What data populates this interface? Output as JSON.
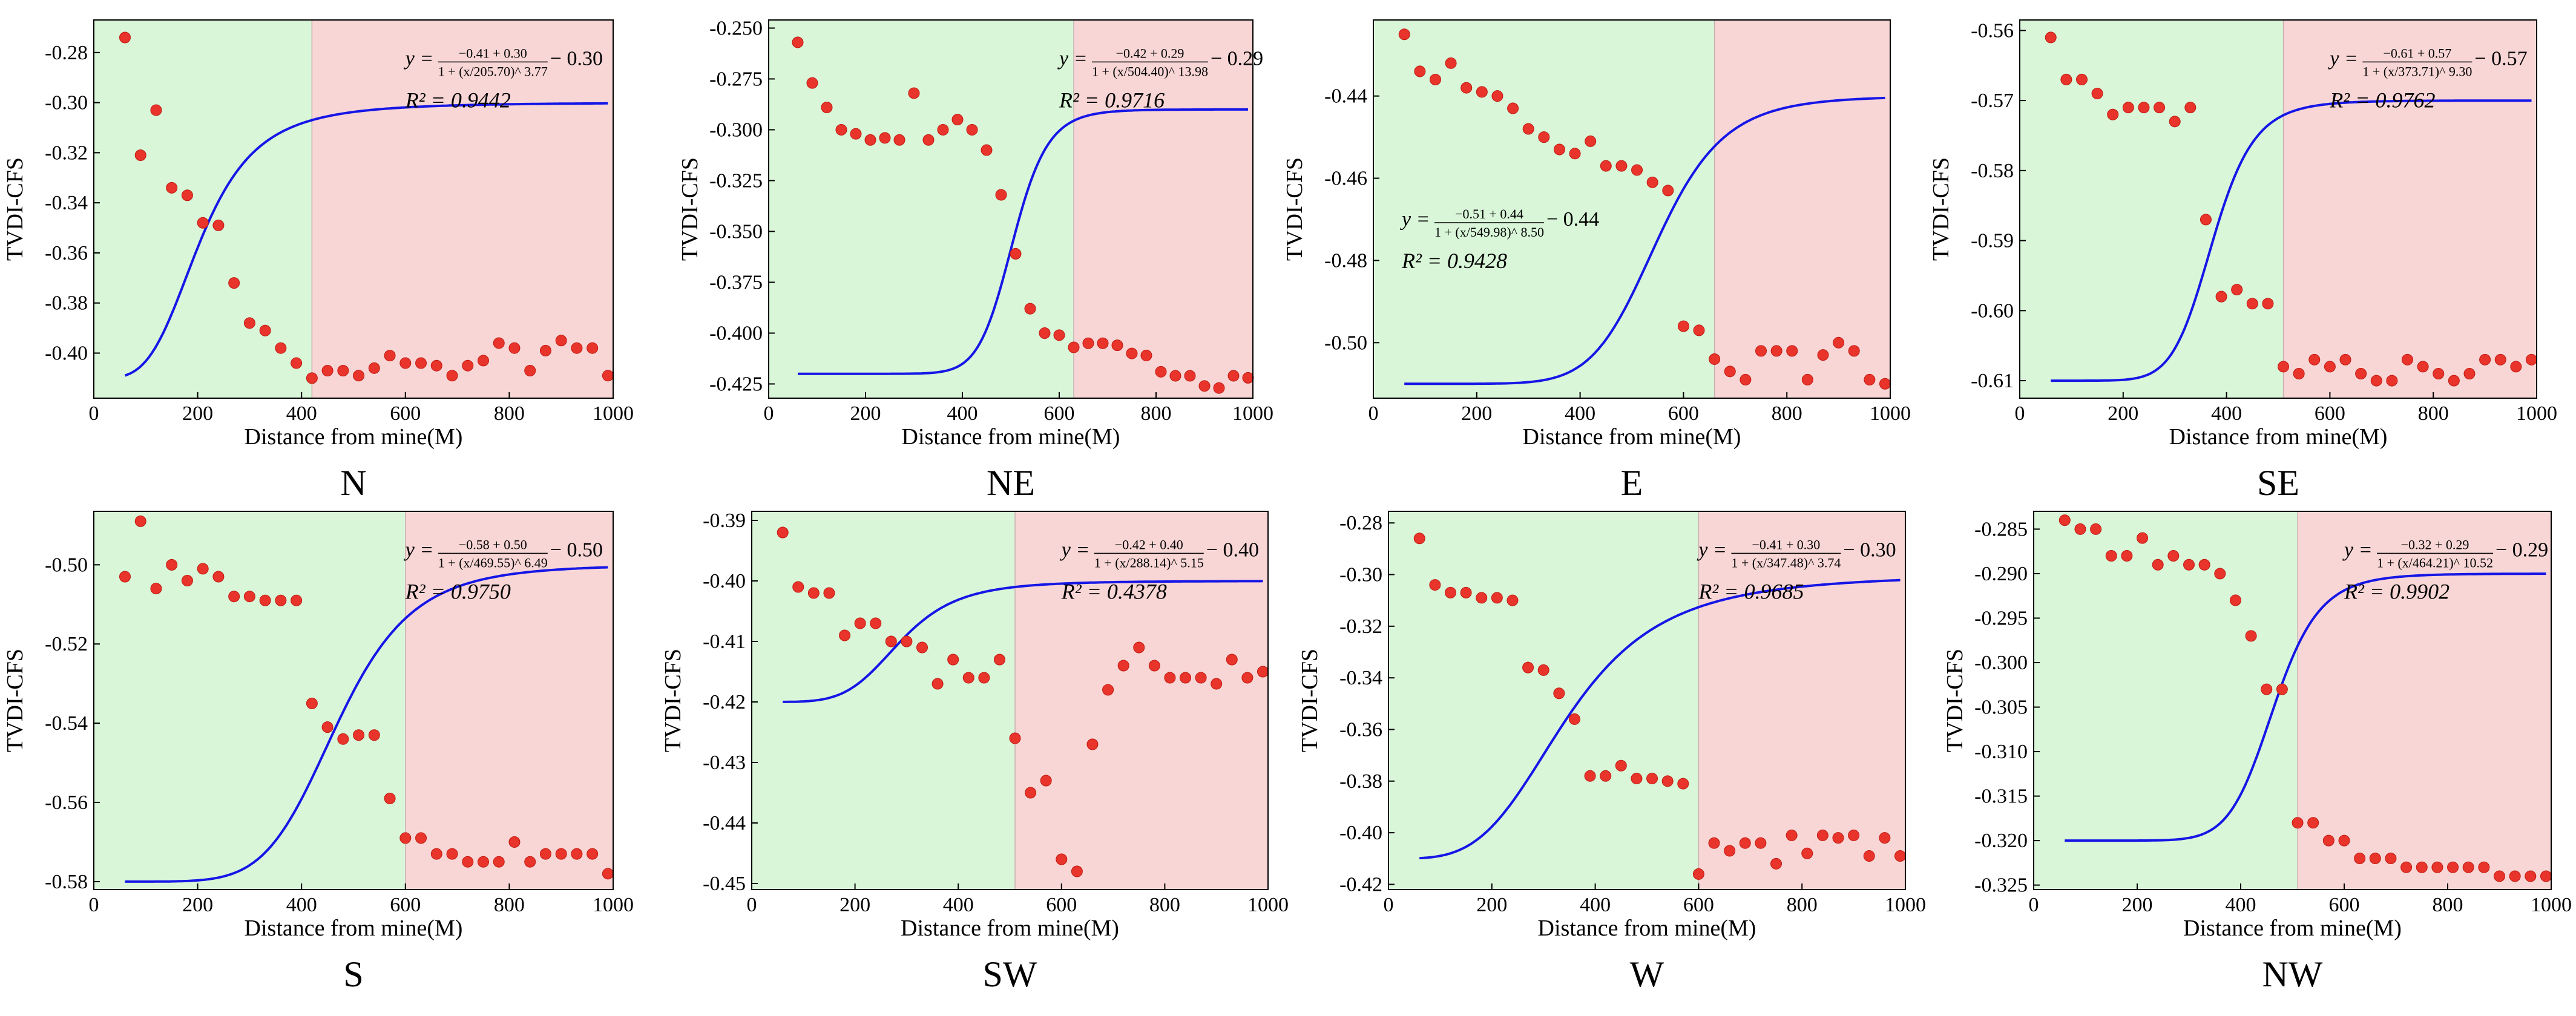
{
  "figure": {
    "colors": {
      "left_zone": "#d9f6d9",
      "right_zone": "#f8d6d6",
      "fit_line": "#1616e6",
      "points": "#e8342a",
      "point_edge": "#c01a12"
    }
  },
  "chart_data": [
    {
      "type": "scatter",
      "title": "N",
      "xlabel": "Distance from mine(M)",
      "ylabel": "TVDI-CFS",
      "xlim": [
        0,
        1000
      ],
      "ylim": [
        -0.418,
        -0.267
      ],
      "xticks": [
        "0",
        "200",
        "400",
        "600",
        "800",
        "1000"
      ],
      "yticks": [
        -0.28,
        -0.3,
        -0.32,
        -0.34,
        -0.36,
        -0.38,
        -0.4
      ],
      "ytick_labels": [
        "-0.28",
        "-0.30",
        "-0.32",
        "-0.34",
        "-0.36",
        "-0.38",
        "-0.40"
      ],
      "zone_boundary": 420,
      "fit": {
        "A1": -0.41,
        "A2": 0.3,
        "x0": 205.7,
        "p": 3.77,
        "c": -0.3
      },
      "equation": {
        "y": "y =",
        "num": "−0.41 + 0.30",
        "den": "1 + (x/205.70)^ 3.77",
        "tail": " − 0.30",
        "r2": "R² = 0.9442"
      },
      "annotation_position": "top-right",
      "points": {
        "x": [
          60,
          90,
          120,
          150,
          180,
          210,
          240,
          270,
          300,
          330,
          360,
          390,
          420,
          450,
          480,
          510,
          540,
          570,
          600,
          630,
          660,
          690,
          720,
          750,
          780,
          810,
          840,
          870,
          900,
          930,
          960,
          990
        ],
        "y": [
          -0.274,
          -0.321,
          -0.303,
          -0.334,
          -0.337,
          -0.348,
          -0.349,
          -0.372,
          -0.388,
          -0.391,
          -0.398,
          -0.404,
          -0.41,
          -0.407,
          -0.407,
          -0.409,
          -0.406,
          -0.401,
          -0.404,
          -0.404,
          -0.405,
          -0.409,
          -0.405,
          -0.403,
          -0.396,
          -0.398,
          -0.407,
          -0.399,
          -0.395,
          -0.398,
          -0.398,
          -0.409
        ]
      }
    },
    {
      "type": "scatter",
      "title": "NE",
      "xlabel": "Distance from mine(M)",
      "ylabel": "TVDI-CFS",
      "xlim": [
        0,
        1000
      ],
      "ylim": [
        -0.432,
        -0.246
      ],
      "xticks": [
        "0",
        "200",
        "400",
        "600",
        "800",
        "1000"
      ],
      "yticks": [
        -0.25,
        -0.275,
        -0.3,
        -0.325,
        -0.35,
        -0.375,
        -0.4,
        -0.425
      ],
      "ytick_labels": [
        "-0.250",
        "-0.275",
        "-0.300",
        "-0.325",
        "-0.350",
        "-0.375",
        "-0.400",
        "-0.425"
      ],
      "zone_boundary": 630,
      "fit": {
        "A1": -0.42,
        "A2": 0.29,
        "x0": 504.4,
        "p": 13.98,
        "c": -0.29
      },
      "equation": {
        "y": "y =",
        "num": "−0.42 + 0.29",
        "den": "1 + (x/504.40)^ 13.98",
        "tail": " − 0.29",
        "r2": "R² = 0.9716"
      },
      "annotation_position": "top-right",
      "points": {
        "x": [
          60,
          90,
          120,
          150,
          180,
          210,
          240,
          270,
          300,
          330,
          360,
          390,
          420,
          450,
          480,
          510,
          540,
          570,
          600,
          630,
          660,
          690,
          720,
          750,
          780,
          810,
          840,
          870,
          900,
          930,
          960,
          990
        ],
        "y": [
          -0.257,
          -0.277,
          -0.289,
          -0.3,
          -0.302,
          -0.305,
          -0.304,
          -0.305,
          -0.282,
          -0.305,
          -0.3,
          -0.295,
          -0.3,
          -0.31,
          -0.332,
          -0.361,
          -0.388,
          -0.4,
          -0.401,
          -0.407,
          -0.405,
          -0.405,
          -0.406,
          -0.41,
          -0.411,
          -0.419,
          -0.421,
          -0.421,
          -0.426,
          -0.427,
          -0.421,
          -0.422
        ]
      }
    },
    {
      "type": "scatter",
      "title": "E",
      "xlabel": "Distance from mine(M)",
      "ylabel": "TVDI-CFS",
      "xlim": [
        0,
        1000
      ],
      "ylim": [
        -0.5135,
        -0.4215
      ],
      "xticks": [
        "0",
        "200",
        "400",
        "600",
        "800",
        "1000"
      ],
      "yticks": [
        -0.44,
        -0.46,
        -0.48,
        -0.5
      ],
      "ytick_labels": [
        "-0.44",
        "-0.46",
        "-0.48",
        "-0.50"
      ],
      "zone_boundary": 660,
      "fit": {
        "A1": -0.51,
        "A2": 0.44,
        "x0": 549.98,
        "p": 8.5,
        "c": -0.44
      },
      "equation": {
        "y": "y =",
        "num": "−0.51 + 0.44",
        "den": "1 + (x/549.98)^ 8.50",
        "tail": " − 0.44",
        "r2": "R² = 0.9428"
      },
      "annotation_position": "middle-left",
      "points": {
        "x": [
          60,
          90,
          120,
          150,
          180,
          210,
          240,
          270,
          300,
          330,
          360,
          390,
          420,
          450,
          480,
          510,
          540,
          570,
          600,
          630,
          660,
          690,
          720,
          750,
          780,
          810,
          840,
          870,
          900,
          930,
          960,
          990
        ],
        "y": [
          -0.425,
          -0.434,
          -0.436,
          -0.432,
          -0.438,
          -0.439,
          -0.44,
          -0.443,
          -0.448,
          -0.45,
          -0.453,
          -0.454,
          -0.451,
          -0.457,
          -0.457,
          -0.458,
          -0.461,
          -0.463,
          -0.496,
          -0.497,
          -0.504,
          -0.507,
          -0.509,
          -0.502,
          -0.502,
          -0.502,
          -0.509,
          -0.503,
          -0.5,
          -0.502,
          -0.509,
          -0.51
        ]
      }
    },
    {
      "type": "scatter",
      "title": "SE",
      "xlabel": "Distance from mine(M)",
      "ylabel": "TVDI-CFS",
      "xlim": [
        0,
        1000
      ],
      "ylim": [
        -0.6125,
        -0.5585
      ],
      "xticks": [
        "0",
        "200",
        "400",
        "600",
        "800",
        "1000"
      ],
      "yticks": [
        -0.56,
        -0.57,
        -0.58,
        -0.59,
        -0.6,
        -0.61
      ],
      "ytick_labels": [
        "-0.56",
        "-0.57",
        "-0.58",
        "-0.59",
        "-0.60",
        "-0.61"
      ],
      "zone_boundary": 510,
      "fit": {
        "A1": -0.61,
        "A2": 0.57,
        "x0": 373.71,
        "p": 9.3,
        "c": -0.57
      },
      "equation": {
        "y": "y =",
        "num": "−0.61 + 0.57",
        "den": "1 + (x/373.71)^ 9.30",
        "tail": " − 0.57",
        "r2": "R² = 0.9762"
      },
      "annotation_position": "top-right",
      "points": {
        "x": [
          60,
          90,
          120,
          150,
          180,
          210,
          240,
          270,
          300,
          330,
          360,
          390,
          420,
          450,
          480,
          510,
          540,
          570,
          600,
          630,
          660,
          690,
          720,
          750,
          780,
          810,
          840,
          870,
          900,
          930,
          960,
          990
        ],
        "y": [
          -0.561,
          -0.567,
          -0.567,
          -0.569,
          -0.572,
          -0.571,
          -0.571,
          -0.571,
          -0.573,
          -0.571,
          -0.587,
          -0.598,
          -0.597,
          -0.599,
          -0.599,
          -0.608,
          -0.609,
          -0.607,
          -0.608,
          -0.607,
          -0.609,
          -0.61,
          -0.61,
          -0.607,
          -0.608,
          -0.609,
          -0.61,
          -0.609,
          -0.607,
          -0.607,
          -0.608,
          -0.607
        ]
      }
    },
    {
      "type": "scatter",
      "title": "S",
      "xlabel": "Distance from mine(M)",
      "ylabel": "TVDI-CFS",
      "xlim": [
        0,
        1000
      ],
      "ylim": [
        -0.582,
        -0.4865
      ],
      "xticks": [
        "0",
        "200",
        "400",
        "600",
        "800",
        "1000"
      ],
      "yticks": [
        -0.5,
        -0.52,
        -0.54,
        -0.56,
        -0.58
      ],
      "ytick_labels": [
        "-0.50",
        "-0.52",
        "-0.54",
        "-0.56",
        "-0.58"
      ],
      "zone_boundary": 600,
      "fit": {
        "A1": -0.58,
        "A2": 0.5,
        "x0": 469.55,
        "p": 6.49,
        "c": -0.5
      },
      "equation": {
        "y": "y =",
        "num": "−0.58 + 0.50",
        "den": "1 + (x/469.55)^ 6.49",
        "tail": " − 0.50",
        "r2": "R² = 0.9750"
      },
      "annotation_position": "top-right",
      "points": {
        "x": [
          60,
          90,
          120,
          150,
          180,
          210,
          240,
          270,
          300,
          330,
          360,
          390,
          420,
          450,
          480,
          510,
          540,
          570,
          600,
          630,
          660,
          690,
          720,
          750,
          780,
          810,
          840,
          870,
          900,
          930,
          960,
          990
        ],
        "y": [
          -0.503,
          -0.489,
          -0.506,
          -0.5,
          -0.504,
          -0.501,
          -0.503,
          -0.508,
          -0.508,
          -0.509,
          -0.509,
          -0.509,
          -0.535,
          -0.541,
          -0.544,
          -0.543,
          -0.543,
          -0.559,
          -0.569,
          -0.569,
          -0.573,
          -0.573,
          -0.575,
          -0.575,
          -0.575,
          -0.57,
          -0.575,
          -0.573,
          -0.573,
          -0.573,
          -0.573,
          -0.578
        ]
      }
    },
    {
      "type": "scatter",
      "title": "SW",
      "xlabel": "Distance from mine(M)",
      "ylabel": "TVDI-CFS",
      "xlim": [
        0,
        1000
      ],
      "ylim": [
        -0.451,
        -0.3885
      ],
      "xticks": [
        "0",
        "200",
        "400",
        "600",
        "800",
        "1000"
      ],
      "yticks": [
        -0.39,
        -0.4,
        -0.41,
        -0.42,
        -0.43,
        -0.44,
        -0.45
      ],
      "ytick_labels": [
        "-0.39",
        "-0.40",
        "-0.41",
        "-0.42",
        "-0.43",
        "-0.44",
        "-0.45"
      ],
      "zone_boundary": 510,
      "fit": {
        "A1": -0.42,
        "A2": 0.4,
        "x0": 288.14,
        "p": 5.15,
        "c": -0.4
      },
      "equation": {
        "y": "y =",
        "num": "−0.42 + 0.40",
        "den": "1 + (x/288.14)^ 5.15",
        "tail": " − 0.40",
        "r2": "R² = 0.4378"
      },
      "annotation_position": "top-right",
      "points": {
        "x": [
          60,
          90,
          120,
          150,
          180,
          210,
          240,
          270,
          300,
          330,
          360,
          390,
          420,
          450,
          480,
          510,
          540,
          570,
          600,
          630,
          660,
          690,
          720,
          750,
          780,
          810,
          840,
          870,
          900,
          930,
          960,
          990
        ],
        "y": [
          -0.392,
          -0.401,
          -0.402,
          -0.402,
          -0.409,
          -0.407,
          -0.407,
          -0.41,
          -0.41,
          -0.411,
          -0.417,
          -0.413,
          -0.416,
          -0.416,
          -0.413,
          -0.426,
          -0.435,
          -0.433,
          -0.446,
          -0.448,
          -0.427,
          -0.418,
          -0.414,
          -0.411,
          -0.414,
          -0.416,
          -0.416,
          -0.416,
          -0.417,
          -0.413,
          -0.416,
          -0.415
        ]
      }
    },
    {
      "type": "scatter",
      "title": "W",
      "xlabel": "Distance from mine(M)",
      "ylabel": "TVDI-CFS",
      "xlim": [
        0,
        1000
      ],
      "ylim": [
        -0.422,
        -0.2755
      ],
      "xticks": [
        "0",
        "200",
        "400",
        "600",
        "800",
        "1000"
      ],
      "yticks": [
        -0.28,
        -0.3,
        -0.32,
        -0.34,
        -0.36,
        -0.38,
        -0.4,
        -0.42
      ],
      "ytick_labels": [
        "-0.28",
        "-0.30",
        "-0.32",
        "-0.34",
        "-0.36",
        "-0.38",
        "-0.40",
        "-0.42"
      ],
      "zone_boundary": 600,
      "fit": {
        "A1": -0.41,
        "A2": 0.3,
        "x0": 347.48,
        "p": 3.74,
        "c": -0.3
      },
      "equation": {
        "y": "y =",
        "num": "−0.41 + 0.30",
        "den": "1 + (x/347.48)^ 3.74",
        "tail": " − 0.30",
        "r2": "R² = 0.9685"
      },
      "annotation_position": "top-right",
      "points": {
        "x": [
          60,
          90,
          120,
          150,
          180,
          210,
          240,
          270,
          300,
          330,
          360,
          390,
          420,
          450,
          480,
          510,
          540,
          570,
          600,
          630,
          660,
          690,
          720,
          750,
          780,
          810,
          840,
          870,
          900,
          930,
          960,
          990
        ],
        "y": [
          -0.286,
          -0.304,
          -0.307,
          -0.307,
          -0.309,
          -0.309,
          -0.31,
          -0.336,
          -0.337,
          -0.346,
          -0.356,
          -0.378,
          -0.378,
          -0.374,
          -0.379,
          -0.379,
          -0.38,
          -0.381,
          -0.416,
          -0.404,
          -0.407,
          -0.404,
          -0.404,
          -0.412,
          -0.401,
          -0.408,
          -0.401,
          -0.402,
          -0.401,
          -0.409,
          -0.402,
          -0.409
        ]
      }
    },
    {
      "type": "scatter",
      "title": "NW",
      "xlabel": "Distance from mine(M)",
      "ylabel": "TVDI-CFS",
      "xlim": [
        0,
        1000
      ],
      "ylim": [
        -0.3255,
        -0.283
      ],
      "xticks": [
        "0",
        "200",
        "400",
        "600",
        "800",
        "1000"
      ],
      "yticks": [
        -0.285,
        -0.29,
        -0.295,
        -0.3,
        -0.305,
        -0.31,
        -0.315,
        -0.32,
        -0.325
      ],
      "ytick_labels": [
        "-0.285",
        "-0.290",
        "-0.295",
        "-0.300",
        "-0.305",
        "-0.310",
        "-0.315",
        "-0.320",
        "-0.325"
      ],
      "zone_boundary": 510,
      "fit": {
        "A1": -0.32,
        "A2": 0.29,
        "x0": 464.21,
        "p": 10.52,
        "c": -0.29
      },
      "equation": {
        "y": "y =",
        "num": "−0.32 + 0.29",
        "den": "1 + (x/464.21)^ 10.52",
        "tail": " − 0.29",
        "r2": "R² = 0.9902"
      },
      "annotation_position": "top-right",
      "points": {
        "x": [
          60,
          90,
          120,
          150,
          180,
          210,
          240,
          270,
          300,
          330,
          360,
          390,
          420,
          450,
          480,
          510,
          540,
          570,
          600,
          630,
          660,
          690,
          720,
          750,
          780,
          810,
          840,
          870,
          900,
          930,
          960,
          990
        ],
        "y": [
          -0.284,
          -0.285,
          -0.285,
          -0.288,
          -0.288,
          -0.286,
          -0.289,
          -0.288,
          -0.289,
          -0.289,
          -0.29,
          -0.293,
          -0.297,
          -0.303,
          -0.303,
          -0.318,
          -0.318,
          -0.32,
          -0.32,
          -0.322,
          -0.322,
          -0.322,
          -0.323,
          -0.323,
          -0.323,
          -0.323,
          -0.323,
          -0.323,
          -0.324,
          -0.324,
          -0.324,
          -0.324
        ]
      }
    }
  ]
}
